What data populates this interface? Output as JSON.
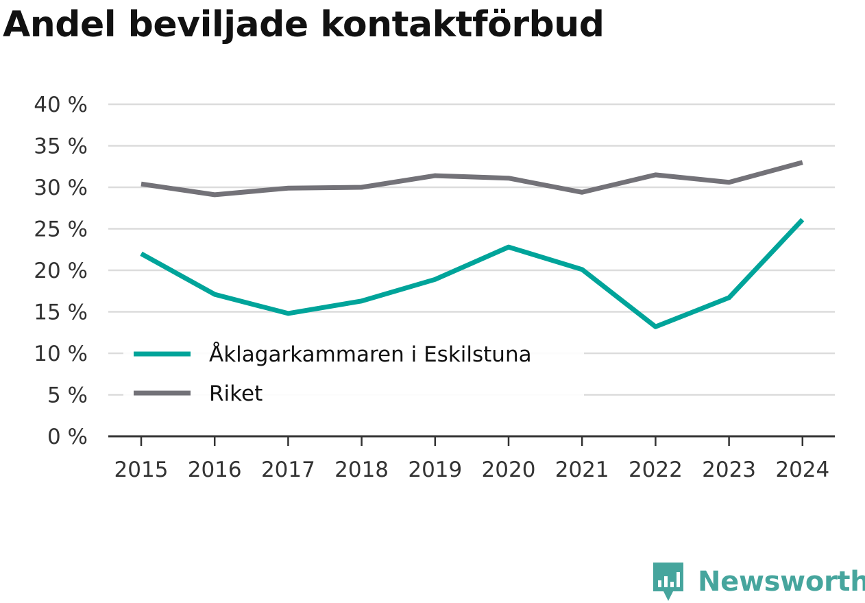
{
  "chart_data": {
    "type": "line",
    "title": "Andel beviljade kontaktförbud",
    "x": [
      "2015",
      "2016",
      "2017",
      "2018",
      "2019",
      "2020",
      "2021",
      "2022",
      "2023",
      "2024"
    ],
    "series": [
      {
        "name": "Åklagarkammaren i Eskilstuna",
        "color": "#00a49a",
        "values": [
          22.0,
          17.1,
          14.8,
          16.3,
          18.9,
          22.8,
          20.1,
          13.2,
          16.7,
          26.1
        ]
      },
      {
        "name": "Riket",
        "color": "#737278",
        "values": [
          30.4,
          29.1,
          29.9,
          30.0,
          31.4,
          31.1,
          29.4,
          31.5,
          30.6,
          33.0
        ]
      }
    ],
    "yticks": [
      "0 %",
      "5 %",
      "10 %",
      "15 %",
      "20 %",
      "25 %",
      "30 %",
      "35 %",
      "40 %"
    ],
    "ylim": [
      0,
      40
    ],
    "grid": true,
    "legend_position": "bottom-left"
  },
  "branding": {
    "logo_text": "Newsworthy",
    "logo_color": "#46a59d",
    "logo_icon": "bar-chart-bubble-icon"
  }
}
